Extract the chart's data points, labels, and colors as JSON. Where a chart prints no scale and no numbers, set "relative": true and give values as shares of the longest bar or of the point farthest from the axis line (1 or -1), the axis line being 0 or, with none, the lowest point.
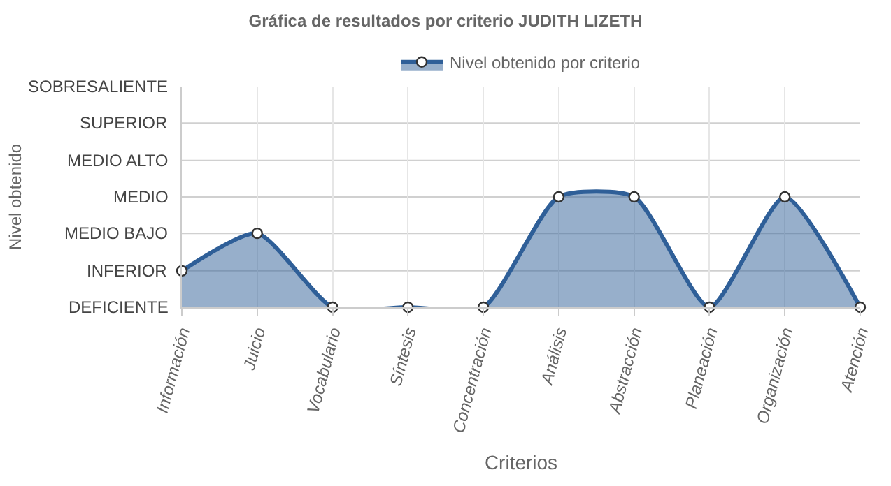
{
  "chart_data": {
    "type": "area",
    "relative": true,
    "title": "Gráfica de resultados por criterio JUDITH LIZETH",
    "xlabel": "Criterios",
    "annotations": [
      "Nivel obtenido"
    ],
    "categories": [
      "Información",
      "Juicio",
      "Vocabulario",
      "Síntesis",
      "Concentración",
      "Análisis",
      "Abstracción",
      "Planeación",
      "Organización",
      "Atención"
    ],
    "series": [
      {
        "name": "Nivel obtenido por criterio",
        "color": "#2f5f98",
        "values": [
          0.33,
          0.67,
          0,
          0,
          0,
          1,
          1,
          0,
          1,
          0
        ]
      }
    ],
    "ref_lines": [
      {
        "axis": "y",
        "value": 0,
        "label": "DEFICIENTE",
        "color": "#d0d0d0"
      },
      {
        "axis": "y",
        "value": 0.33,
        "label": "INFERIOR",
        "color": "#d0d0d0"
      },
      {
        "axis": "y",
        "value": 0.67,
        "label": "MEDIO BAJO",
        "color": "#d0d0d0"
      },
      {
        "axis": "y",
        "value": 1,
        "label": "MEDIO",
        "color": "#d0d0d0"
      },
      {
        "axis": "y",
        "value": 1.33,
        "label": "MEDIO ALTO",
        "color": "#d0d0d0"
      },
      {
        "axis": "y",
        "value": 1.67,
        "label": "SUPERIOR",
        "color": "#d0d0d0"
      },
      {
        "axis": "y",
        "value": 2,
        "label": "SOBRESALIENTE",
        "color": "#d0d0d0"
      }
    ],
    "grid": "x",
    "legend": "top",
    "marker": "circle",
    "line_style": "solid"
  }
}
